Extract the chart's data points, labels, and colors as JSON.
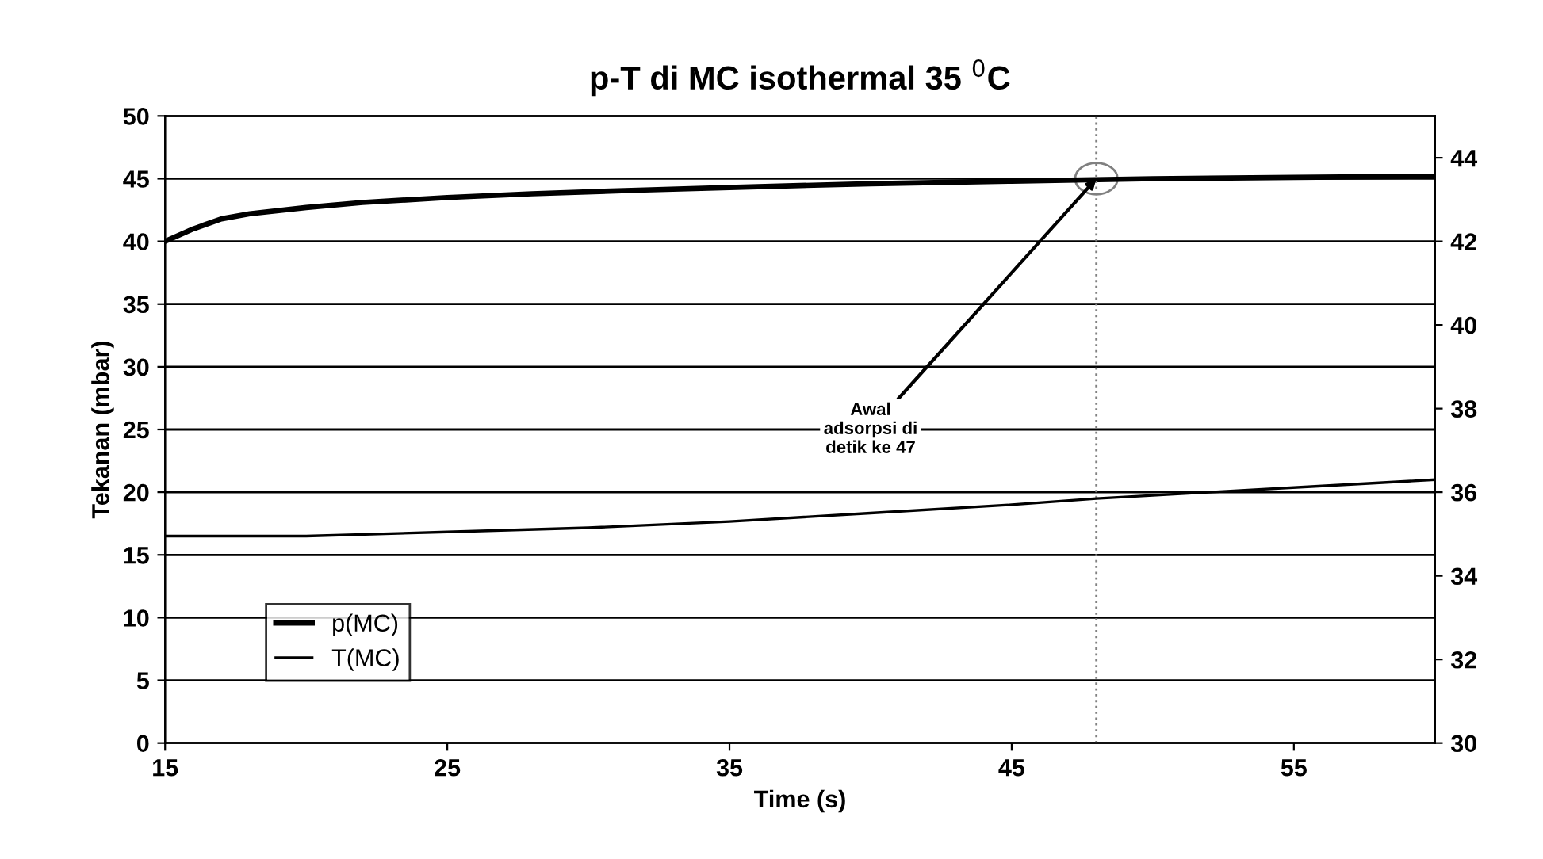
{
  "chart_data": {
    "type": "line",
    "title": "p-T di MC isothermal 35 $^{0}$C",
    "xlabel": "Time (s)",
    "ylabel": "Tekanan (mbar)",
    "xlim": [
      15,
      60
    ],
    "xticks": [
      15,
      25,
      35,
      45,
      55
    ],
    "ylim": [
      0,
      50
    ],
    "yticks": [
      0,
      5,
      10,
      15,
      20,
      25,
      30,
      35,
      40,
      45,
      50
    ],
    "y2lim": [
      30,
      45
    ],
    "y2ticks": [
      30,
      32,
      34,
      36,
      38,
      40,
      42,
      44
    ],
    "series": [
      {
        "name": "p(MC)",
        "color": "#000000",
        "x": [
          15,
          16,
          17,
          18,
          20,
          22,
          25,
          28,
          32,
          35,
          40,
          45,
          50,
          55,
          60
        ],
        "values": [
          40,
          41,
          41.8,
          42.2,
          42.7,
          43.1,
          43.5,
          43.8,
          44.1,
          44.3,
          44.6,
          44.8,
          45,
          45.1,
          45.2
        ]
      },
      {
        "name": "T(MC)",
        "color": "#000000",
        "axis": "y2",
        "x": [
          15,
          20,
          25,
          30,
          35,
          40,
          45,
          48,
          52,
          56,
          60
        ],
        "values": [
          34.95,
          34.95,
          35.05,
          35.15,
          35.3,
          35.5,
          35.7,
          35.85,
          36,
          36.15,
          36.3
        ]
      }
    ],
    "ref_lines": [
      {
        "axis": "x",
        "value": 48,
        "color": "#808080",
        "line_style": "dotted"
      }
    ],
    "annotations": [
      {
        "text": "Awal\nadsorpsi di\ndetik ke 47",
        "x": 48,
        "y": 45
      }
    ],
    "grid": "y",
    "legend": "bottom left",
    "line_style": "solid",
    "marker": "none"
  }
}
